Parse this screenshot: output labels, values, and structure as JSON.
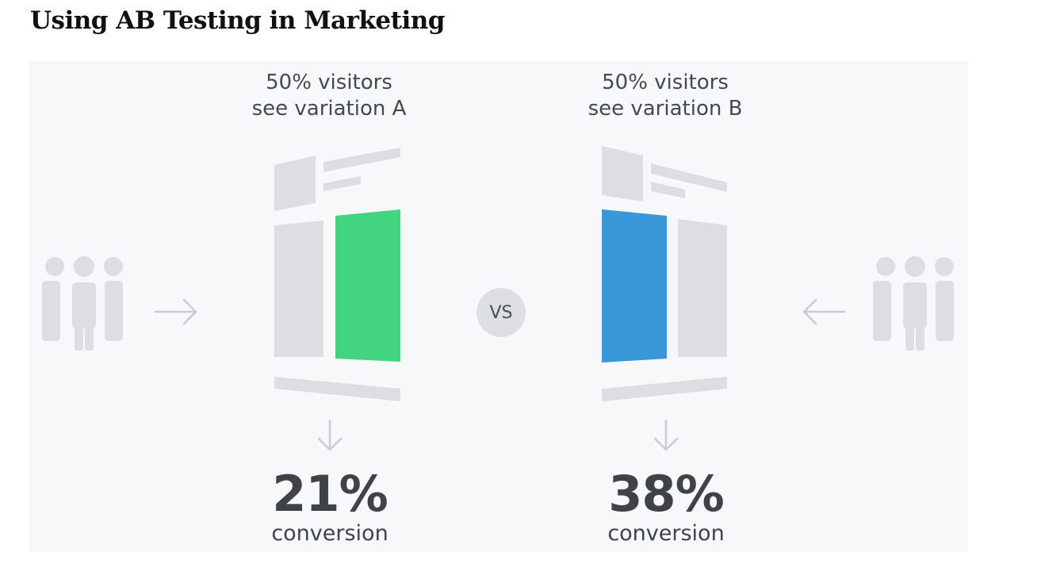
{
  "page": {
    "title": "Using AB Testing in Marketing"
  },
  "variation_a": {
    "caption_line1": "50% visitors",
    "caption_line2": "see variation A",
    "percent": "21%",
    "label": "conversion",
    "highlight_color": "#43d480"
  },
  "variation_b": {
    "caption_line1": "50% visitors",
    "caption_line2": "see variation B",
    "percent": "38%",
    "label": "conversion",
    "highlight_color": "#3a98d9"
  },
  "center": {
    "vs_label": "VS"
  },
  "colors": {
    "panel_bg": "#f7f8fa",
    "wireframe": "#dcdee1",
    "people": "#dcdee1",
    "arrow": "#c9ccd0",
    "text": "#3f4348"
  },
  "icons": [
    "people-group-icon",
    "arrow-right-icon",
    "arrow-left-icon",
    "arrow-down-icon",
    "webpage-wireframe-icon"
  ]
}
